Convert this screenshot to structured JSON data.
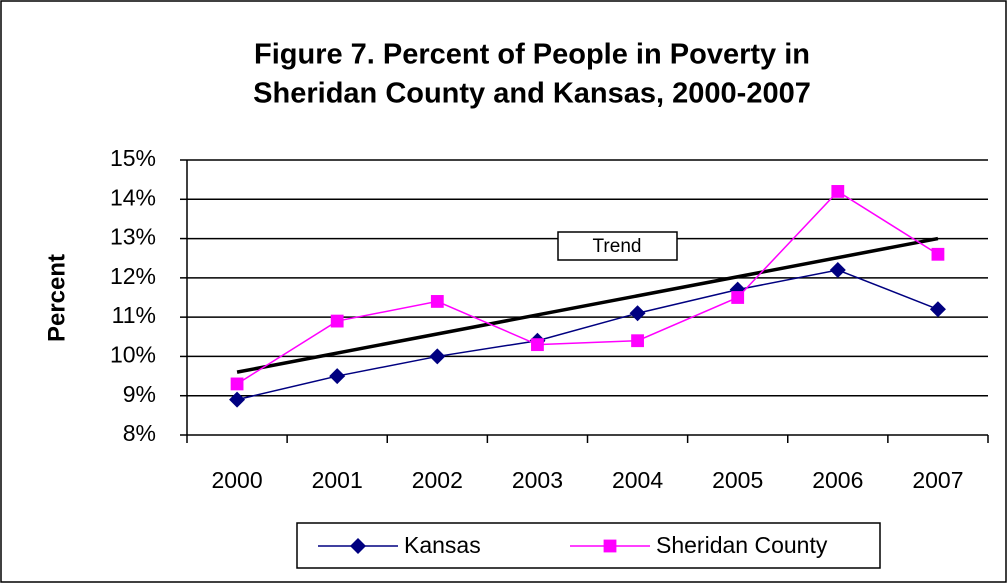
{
  "chart_data": {
    "type": "line",
    "title": [
      "Figure 7. Percent of People in Poverty in",
      "Sheridan County and Kansas, 2000-2007"
    ],
    "y_label": "Percent",
    "categories": [
      "2000",
      "2001",
      "2002",
      "2003",
      "2004",
      "2005",
      "2006",
      "2007"
    ],
    "series": [
      {
        "name": "Kansas",
        "color": "#000080",
        "marker": "diamond",
        "values": [
          8.9,
          9.5,
          10.0,
          10.4,
          11.1,
          11.7,
          12.2,
          11.2
        ]
      },
      {
        "name": "Sheridan County",
        "color": "#ff00ff",
        "marker": "square",
        "values": [
          9.3,
          10.9,
          11.4,
          10.3,
          10.4,
          11.5,
          14.2,
          12.6
        ]
      }
    ],
    "trend": {
      "label": "Trend",
      "color": "#000000",
      "values": [
        9.6,
        13.0
      ]
    },
    "ylim": [
      8,
      15
    ],
    "yticks": [
      {
        "value": 8,
        "label": "8%"
      },
      {
        "value": 9,
        "label": "9%"
      },
      {
        "value": 10,
        "label": "10%"
      },
      {
        "value": 11,
        "label": "11%"
      },
      {
        "value": 12,
        "label": "12%"
      },
      {
        "value": 13,
        "label": "13%"
      },
      {
        "value": 14,
        "label": "14%"
      },
      {
        "value": 15,
        "label": "15%"
      }
    ],
    "grid": true,
    "legend": "bottom"
  }
}
